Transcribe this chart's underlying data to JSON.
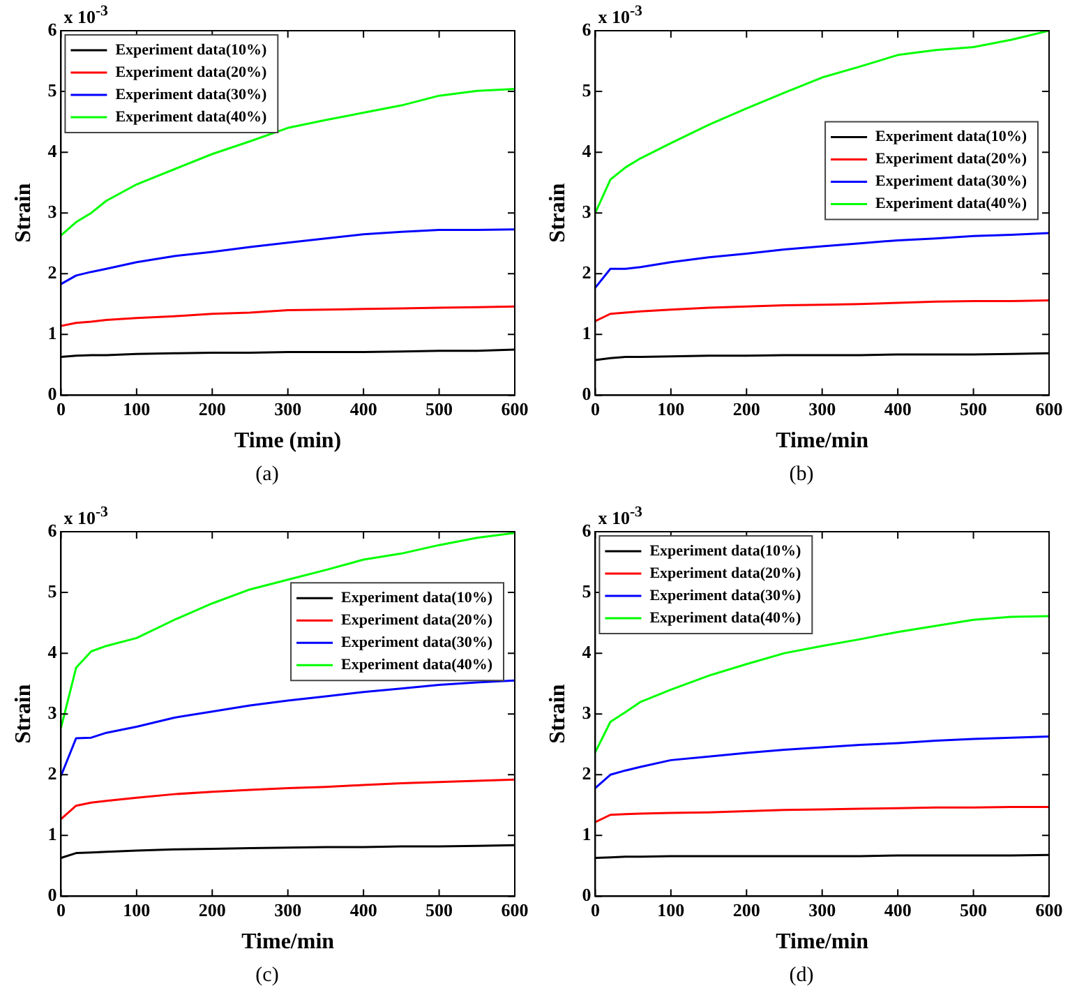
{
  "chart_data": [
    {
      "type": "line",
      "xlabel": "Time (min)",
      "ylabel": "Strain",
      "annotations": [
        "x 10$^{-3}$",
        "(a)"
      ],
      "legend": "top left",
      "grid": false,
      "xlim": [
        0,
        600
      ],
      "xticks": [
        0,
        100,
        200,
        300,
        400,
        500,
        600
      ],
      "ylim": [
        0,
        6
      ],
      "yticks": [
        0,
        1,
        2,
        3,
        4,
        5,
        6
      ],
      "x": [
        0,
        20,
        40,
        60,
        100,
        150,
        200,
        250,
        300,
        350,
        400,
        450,
        500,
        550,
        600
      ],
      "series": [
        {
          "name": "Experiment data(10%)",
          "color": "#000000",
          "values": [
            0.63,
            0.65,
            0.66,
            0.66,
            0.68,
            0.69,
            0.7,
            0.7,
            0.71,
            0.71,
            0.71,
            0.72,
            0.73,
            0.73,
            0.75
          ]
        },
        {
          "name": "Experiment data(20%)",
          "color": "#ff0000",
          "values": [
            1.14,
            1.19,
            1.21,
            1.24,
            1.27,
            1.3,
            1.34,
            1.36,
            1.4,
            1.41,
            1.42,
            1.43,
            1.44,
            1.45,
            1.46
          ]
        },
        {
          "name": "Experiment data(30%)",
          "color": "#0000ff",
          "values": [
            1.83,
            1.97,
            2.03,
            2.08,
            2.19,
            2.29,
            2.36,
            2.44,
            2.51,
            2.58,
            2.65,
            2.69,
            2.72,
            2.72,
            2.73
          ]
        },
        {
          "name": "Experiment data(40%)",
          "color": "#00ff00",
          "values": [
            2.63,
            2.85,
            3.0,
            3.2,
            3.47,
            3.72,
            3.97,
            4.18,
            4.4,
            4.53,
            4.65,
            4.77,
            4.93,
            5.01,
            5.04
          ]
        }
      ]
    },
    {
      "type": "line",
      "xlabel": "Time/min",
      "ylabel": "Strain",
      "annotations": [
        "x 10$^{-3}$",
        "(b)"
      ],
      "legend": "center right",
      "grid": false,
      "xlim": [
        0,
        600
      ],
      "xticks": [
        0,
        100,
        200,
        300,
        400,
        500,
        600
      ],
      "ylim": [
        0,
        6
      ],
      "yticks": [
        0,
        1,
        2,
        3,
        4,
        5,
        6
      ],
      "x": [
        0,
        20,
        40,
        60,
        100,
        150,
        200,
        250,
        300,
        350,
        400,
        450,
        500,
        550,
        600
      ],
      "series": [
        {
          "name": "Experiment data(10%)",
          "color": "#000000",
          "values": [
            0.58,
            0.61,
            0.63,
            0.63,
            0.64,
            0.65,
            0.65,
            0.66,
            0.66,
            0.66,
            0.67,
            0.67,
            0.67,
            0.68,
            0.69
          ]
        },
        {
          "name": "Experiment data(20%)",
          "color": "#ff0000",
          "values": [
            1.22,
            1.34,
            1.36,
            1.38,
            1.41,
            1.44,
            1.46,
            1.48,
            1.49,
            1.5,
            1.52,
            1.54,
            1.55,
            1.55,
            1.56
          ]
        },
        {
          "name": "Experiment data(30%)",
          "color": "#0000ff",
          "values": [
            1.77,
            2.08,
            2.08,
            2.11,
            2.19,
            2.27,
            2.33,
            2.4,
            2.45,
            2.5,
            2.55,
            2.58,
            2.62,
            2.64,
            2.67
          ]
        },
        {
          "name": "Experiment data(40%)",
          "color": "#00ff00",
          "values": [
            3.0,
            3.55,
            3.75,
            3.9,
            4.15,
            4.45,
            4.72,
            4.98,
            5.23,
            5.41,
            5.6,
            5.68,
            5.73,
            5.85,
            6.0
          ]
        }
      ]
    },
    {
      "type": "line",
      "xlabel": "Time/min",
      "ylabel": "Strain",
      "annotations": [
        "x 10$^{-3}$",
        "(c)"
      ],
      "legend": "top right",
      "grid": false,
      "xlim": [
        0,
        600
      ],
      "xticks": [
        0,
        100,
        200,
        300,
        400,
        500,
        600
      ],
      "ylim": [
        0,
        6
      ],
      "yticks": [
        0,
        1,
        2,
        3,
        4,
        5,
        6
      ],
      "x": [
        0,
        20,
        40,
        60,
        100,
        150,
        200,
        250,
        300,
        350,
        400,
        450,
        500,
        550,
        600
      ],
      "series": [
        {
          "name": "Experiment data(10%)",
          "color": "#000000",
          "values": [
            0.63,
            0.71,
            0.72,
            0.73,
            0.75,
            0.77,
            0.78,
            0.79,
            0.8,
            0.81,
            0.81,
            0.82,
            0.82,
            0.83,
            0.84
          ]
        },
        {
          "name": "Experiment data(20%)",
          "color": "#ff0000",
          "values": [
            1.27,
            1.49,
            1.54,
            1.57,
            1.62,
            1.68,
            1.72,
            1.75,
            1.78,
            1.8,
            1.83,
            1.86,
            1.88,
            1.9,
            1.92
          ]
        },
        {
          "name": "Experiment data(30%)",
          "color": "#0000ff",
          "values": [
            1.98,
            2.6,
            2.61,
            2.69,
            2.79,
            2.94,
            3.04,
            3.14,
            3.22,
            3.29,
            3.36,
            3.42,
            3.48,
            3.52,
            3.55
          ]
        },
        {
          "name": "Experiment data(40%)",
          "color": "#00ff00",
          "values": [
            2.77,
            3.76,
            4.03,
            4.12,
            4.25,
            4.55,
            4.82,
            5.05,
            5.21,
            5.37,
            5.54,
            5.64,
            5.78,
            5.9,
            5.98
          ]
        }
      ]
    },
    {
      "type": "line",
      "xlabel": "Time/min",
      "ylabel": "Strain",
      "annotations": [
        "x 10$^{-3}$",
        "(d)"
      ],
      "legend": "top left",
      "grid": false,
      "xlim": [
        0,
        600
      ],
      "xticks": [
        0,
        100,
        200,
        300,
        400,
        500,
        600
      ],
      "ylim": [
        0,
        6
      ],
      "yticks": [
        0,
        1,
        2,
        3,
        4,
        5,
        6
      ],
      "x": [
        0,
        20,
        40,
        60,
        100,
        150,
        200,
        250,
        300,
        350,
        400,
        450,
        500,
        550,
        600
      ],
      "series": [
        {
          "name": "Experiment data(10%)",
          "color": "#000000",
          "values": [
            0.63,
            0.64,
            0.65,
            0.65,
            0.66,
            0.66,
            0.66,
            0.66,
            0.66,
            0.66,
            0.67,
            0.67,
            0.67,
            0.67,
            0.68
          ]
        },
        {
          "name": "Experiment data(20%)",
          "color": "#ff0000",
          "values": [
            1.22,
            1.34,
            1.35,
            1.36,
            1.37,
            1.38,
            1.4,
            1.42,
            1.43,
            1.44,
            1.45,
            1.46,
            1.46,
            1.47,
            1.47
          ]
        },
        {
          "name": "Experiment data(30%)",
          "color": "#0000ff",
          "values": [
            1.78,
            2.0,
            2.07,
            2.13,
            2.24,
            2.3,
            2.36,
            2.41,
            2.45,
            2.49,
            2.52,
            2.56,
            2.59,
            2.61,
            2.63
          ]
        },
        {
          "name": "Experiment data(40%)",
          "color": "#00ff00",
          "values": [
            2.37,
            2.87,
            3.03,
            3.2,
            3.4,
            3.63,
            3.82,
            4.0,
            4.12,
            4.23,
            4.35,
            4.45,
            4.55,
            4.6,
            4.61
          ]
        }
      ]
    }
  ]
}
